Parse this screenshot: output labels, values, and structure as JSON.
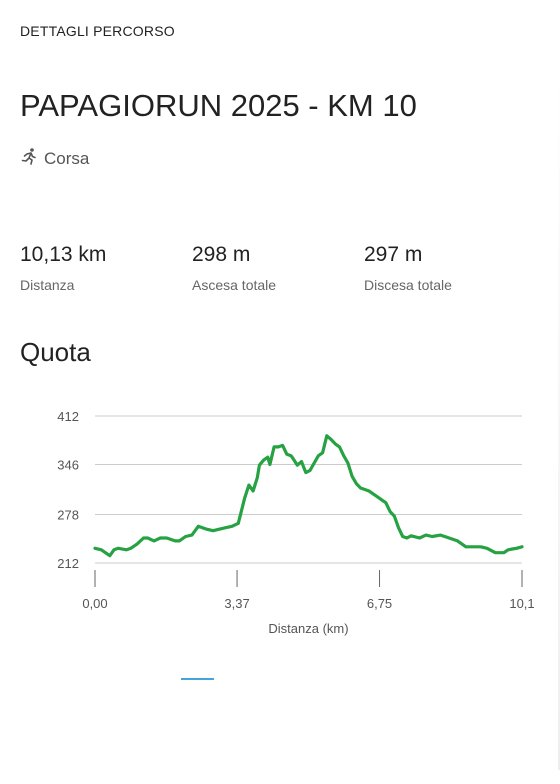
{
  "header": {
    "label": "DETTAGLI PERCORSO"
  },
  "route": {
    "title": "PAPAGIORUN 2025 - KM 10",
    "activity": {
      "icon": "running-person-icon",
      "label": "Corsa"
    }
  },
  "stats": {
    "distance": {
      "value": "10,13 km",
      "label": "Distanza"
    },
    "ascent": {
      "value": "298 m",
      "label": "Ascesa totale"
    },
    "descent": {
      "value": "297 m",
      "label": "Discesa totale"
    }
  },
  "elevation_section": {
    "title": "Quota"
  },
  "colors": {
    "line": "#27a243",
    "grid": "#cccccc",
    "tab_indicator": "#45a4d8"
  },
  "chart_data": {
    "type": "line",
    "title": "Quota",
    "xlabel": "Distanza (km)",
    "ylabel": "",
    "xlim": [
      0,
      10.13
    ],
    "ylim": [
      212,
      412
    ],
    "y_ticks": [
      "412",
      "346",
      "278",
      "212"
    ],
    "y_tick_values": [
      412,
      346,
      278,
      212
    ],
    "x_ticks": [
      "0,00",
      "3,37",
      "6,75",
      "10,1"
    ],
    "x_tick_values": [
      0,
      3.37,
      6.75,
      10.13
    ],
    "grid": true,
    "series": [
      {
        "x": [
          0,
          0.15,
          0.3,
          0.35,
          0.45,
          0.55,
          0.75,
          0.85,
          1.0,
          1.15,
          1.25,
          1.4,
          1.55,
          1.7,
          1.9,
          2.0,
          2.15,
          2.3,
          2.45,
          2.65,
          2.8,
          2.95,
          3.1,
          3.25,
          3.4,
          3.55,
          3.65,
          3.75,
          3.85,
          3.9,
          4.0,
          4.1,
          4.15,
          4.25,
          4.35,
          4.45,
          4.55,
          4.65,
          4.7,
          4.8,
          4.9,
          5.0,
          5.1,
          5.2,
          5.3,
          5.4,
          5.5,
          5.6,
          5.7,
          5.8,
          5.9,
          6.0,
          6.1,
          6.2,
          6.3,
          6.4,
          6.5,
          6.6,
          6.7,
          6.8,
          6.9,
          7.0,
          7.1,
          7.2,
          7.3,
          7.4,
          7.5,
          7.7,
          7.85,
          8.0,
          8.2,
          8.4,
          8.6,
          8.8,
          9.0,
          9.15,
          9.3,
          9.5,
          9.7,
          9.8,
          9.9,
          10.0,
          10.13
        ],
        "y": [
          232,
          230,
          224,
          222,
          230,
          232,
          230,
          232,
          238,
          246,
          246,
          242,
          246,
          246,
          242,
          242,
          248,
          250,
          262,
          258,
          256,
          258,
          260,
          262,
          266,
          300,
          318,
          310,
          328,
          345,
          352,
          356,
          346,
          370,
          370,
          372,
          360,
          358,
          354,
          345,
          350,
          335,
          338,
          348,
          358,
          362,
          385,
          380,
          374,
          370,
          358,
          348,
          330,
          320,
          314,
          312,
          310,
          306,
          302,
          298,
          294,
          282,
          276,
          260,
          248,
          246,
          249,
          246,
          250,
          248,
          250,
          246,
          242,
          234,
          234,
          234,
          232,
          226,
          226,
          230,
          231,
          232,
          234
        ]
      }
    ]
  }
}
